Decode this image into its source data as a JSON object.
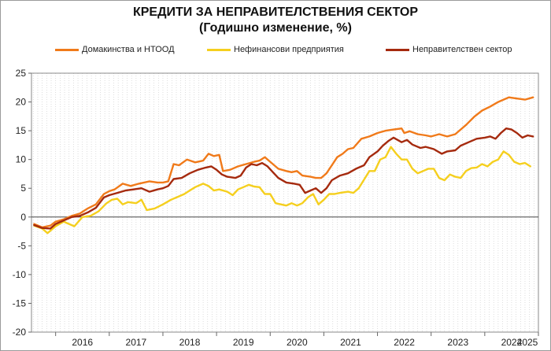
{
  "chart_data": {
    "type": "line",
    "title": "КРЕДИТИ ЗА НЕПРАВИТЕЛСТВЕНИЯ  СЕКТОР",
    "subtitle": "(Годишно  изменение, %)",
    "xlabel": "",
    "ylabel": "",
    "ylim": [
      -20,
      25
    ],
    "yticks": [
      25,
      20,
      15,
      10,
      5,
      0,
      -5,
      -10,
      -15,
      -20
    ],
    "xticks": [
      "2016",
      "2017",
      "2018",
      "2019",
      "2020",
      "2021",
      "2022",
      "2023",
      "2024",
      "2025"
    ],
    "legend_position": "top",
    "grid": "vertical monthly dotted lines",
    "series": [
      {
        "name": "Домакинства и НТООД",
        "color": "#f07a1a",
        "points": [
          [
            2015.6,
            -1.2
          ],
          [
            2015.75,
            -1.8
          ],
          [
            2015.9,
            -1.5
          ],
          [
            2016.0,
            -0.8
          ],
          [
            2016.15,
            -0.4
          ],
          [
            2016.3,
            0.2
          ],
          [
            2016.45,
            0.6
          ],
          [
            2016.6,
            1.5
          ],
          [
            2016.75,
            2.2
          ],
          [
            2016.9,
            4.0
          ],
          [
            2017.0,
            4.5
          ],
          [
            2017.1,
            4.8
          ],
          [
            2017.25,
            5.8
          ],
          [
            2017.4,
            5.4
          ],
          [
            2017.55,
            5.8
          ],
          [
            2017.75,
            6.2
          ],
          [
            2017.9,
            6.0
          ],
          [
            2018.0,
            6.0
          ],
          [
            2018.1,
            6.2
          ],
          [
            2018.2,
            9.2
          ],
          [
            2018.3,
            9.0
          ],
          [
            2018.45,
            10.0
          ],
          [
            2018.6,
            9.5
          ],
          [
            2018.75,
            9.8
          ],
          [
            2018.85,
            11.0
          ],
          [
            2018.95,
            10.6
          ],
          [
            2019.05,
            10.8
          ],
          [
            2019.12,
            8.0
          ],
          [
            2019.25,
            8.2
          ],
          [
            2019.4,
            8.8
          ],
          [
            2019.55,
            9.2
          ],
          [
            2019.7,
            9.6
          ],
          [
            2019.8,
            9.8
          ],
          [
            2019.9,
            10.4
          ],
          [
            2020.0,
            9.6
          ],
          [
            2020.15,
            8.4
          ],
          [
            2020.3,
            8.0
          ],
          [
            2020.4,
            7.8
          ],
          [
            2020.5,
            8.0
          ],
          [
            2020.6,
            7.2
          ],
          [
            2020.75,
            7.0
          ],
          [
            2020.85,
            6.8
          ],
          [
            2020.95,
            6.8
          ],
          [
            2021.05,
            7.6
          ],
          [
            2021.15,
            9.0
          ],
          [
            2021.25,
            10.4
          ],
          [
            2021.35,
            11.0
          ],
          [
            2021.45,
            11.8
          ],
          [
            2021.55,
            12.0
          ],
          [
            2021.7,
            13.6
          ],
          [
            2021.85,
            14.0
          ],
          [
            2022.0,
            14.6
          ],
          [
            2022.15,
            15.0
          ],
          [
            2022.3,
            15.2
          ],
          [
            2022.45,
            15.4
          ],
          [
            2022.5,
            14.6
          ],
          [
            2022.6,
            14.9
          ],
          [
            2022.75,
            14.4
          ],
          [
            2022.9,
            14.2
          ],
          [
            2023.0,
            14.0
          ],
          [
            2023.15,
            14.4
          ],
          [
            2023.3,
            14.0
          ],
          [
            2023.45,
            14.4
          ],
          [
            2023.55,
            15.2
          ],
          [
            2023.65,
            16.0
          ],
          [
            2023.8,
            17.4
          ],
          [
            2023.95,
            18.5
          ],
          [
            2024.1,
            19.2
          ],
          [
            2024.25,
            20.0
          ],
          [
            2024.35,
            20.4
          ],
          [
            2024.45,
            20.8
          ],
          [
            2024.6,
            20.6
          ],
          [
            2024.75,
            20.4
          ],
          [
            2024.9,
            20.8
          ]
        ]
      },
      {
        "name": "Нефинанcови предприятия",
        "color": "#f5cf1e",
        "points": [
          [
            2015.6,
            -1.5
          ],
          [
            2015.75,
            -2.0
          ],
          [
            2015.85,
            -2.8
          ],
          [
            2016.0,
            -1.6
          ],
          [
            2016.15,
            -0.8
          ],
          [
            2016.25,
            -1.2
          ],
          [
            2016.35,
            -1.6
          ],
          [
            2016.5,
            0.0
          ],
          [
            2016.65,
            0.2
          ],
          [
            2016.8,
            1.0
          ],
          [
            2016.95,
            2.4
          ],
          [
            2017.05,
            3.0
          ],
          [
            2017.15,
            3.2
          ],
          [
            2017.25,
            2.2
          ],
          [
            2017.35,
            2.6
          ],
          [
            2017.5,
            2.4
          ],
          [
            2017.6,
            3.0
          ],
          [
            2017.7,
            1.2
          ],
          [
            2017.85,
            1.5
          ],
          [
            2018.0,
            2.2
          ],
          [
            2018.15,
            3.0
          ],
          [
            2018.3,
            3.6
          ],
          [
            2018.4,
            4.0
          ],
          [
            2018.5,
            4.6
          ],
          [
            2018.6,
            5.2
          ],
          [
            2018.75,
            5.8
          ],
          [
            2018.85,
            5.4
          ],
          [
            2018.95,
            4.6
          ],
          [
            2019.05,
            4.8
          ],
          [
            2019.2,
            4.4
          ],
          [
            2019.3,
            3.8
          ],
          [
            2019.4,
            4.8
          ],
          [
            2019.5,
            5.2
          ],
          [
            2019.6,
            5.6
          ],
          [
            2019.7,
            5.3
          ],
          [
            2019.8,
            5.2
          ],
          [
            2019.9,
            4.0
          ],
          [
            2020.0,
            4.0
          ],
          [
            2020.1,
            2.4
          ],
          [
            2020.2,
            2.2
          ],
          [
            2020.3,
            2.0
          ],
          [
            2020.4,
            2.4
          ],
          [
            2020.5,
            2.0
          ],
          [
            2020.6,
            2.4
          ],
          [
            2020.7,
            3.4
          ],
          [
            2020.8,
            4.0
          ],
          [
            2020.9,
            2.2
          ],
          [
            2021.0,
            3.0
          ],
          [
            2021.1,
            4.0
          ],
          [
            2021.2,
            4.0
          ],
          [
            2021.3,
            4.2
          ],
          [
            2021.45,
            4.4
          ],
          [
            2021.55,
            4.2
          ],
          [
            2021.65,
            5.0
          ],
          [
            2021.75,
            6.5
          ],
          [
            2021.85,
            8.0
          ],
          [
            2021.95,
            8.0
          ],
          [
            2022.05,
            10.0
          ],
          [
            2022.15,
            10.4
          ],
          [
            2022.25,
            12.2
          ],
          [
            2022.35,
            11.0
          ],
          [
            2022.45,
            10.0
          ],
          [
            2022.55,
            10.0
          ],
          [
            2022.65,
            8.4
          ],
          [
            2022.75,
            7.6
          ],
          [
            2022.85,
            8.0
          ],
          [
            2022.95,
            8.4
          ],
          [
            2023.05,
            8.4
          ],
          [
            2023.15,
            6.8
          ],
          [
            2023.25,
            6.4
          ],
          [
            2023.35,
            7.4
          ],
          [
            2023.45,
            7.0
          ],
          [
            2023.55,
            6.8
          ],
          [
            2023.65,
            8.0
          ],
          [
            2023.75,
            8.5
          ],
          [
            2023.85,
            8.6
          ],
          [
            2023.95,
            9.2
          ],
          [
            2024.05,
            8.8
          ],
          [
            2024.15,
            9.6
          ],
          [
            2024.25,
            10.0
          ],
          [
            2024.35,
            11.4
          ],
          [
            2024.45,
            10.8
          ],
          [
            2024.55,
            9.6
          ],
          [
            2024.65,
            9.2
          ],
          [
            2024.75,
            9.4
          ],
          [
            2024.85,
            8.8
          ]
        ]
      },
      {
        "name": "Неправителствен сектор",
        "color": "#a52a0e",
        "points": [
          [
            2015.6,
            -1.4
          ],
          [
            2015.75,
            -1.9
          ],
          [
            2015.9,
            -2.0
          ],
          [
            2016.0,
            -1.2
          ],
          [
            2016.15,
            -0.6
          ],
          [
            2016.3,
            0.0
          ],
          [
            2016.45,
            0.2
          ],
          [
            2016.6,
            0.8
          ],
          [
            2016.75,
            1.6
          ],
          [
            2016.9,
            3.4
          ],
          [
            2017.0,
            3.8
          ],
          [
            2017.15,
            4.2
          ],
          [
            2017.3,
            4.6
          ],
          [
            2017.45,
            4.8
          ],
          [
            2017.6,
            5.0
          ],
          [
            2017.75,
            4.4
          ],
          [
            2017.9,
            4.8
          ],
          [
            2018.0,
            5.0
          ],
          [
            2018.1,
            5.4
          ],
          [
            2018.2,
            6.6
          ],
          [
            2018.35,
            6.8
          ],
          [
            2018.5,
            7.6
          ],
          [
            2018.65,
            8.2
          ],
          [
            2018.8,
            8.6
          ],
          [
            2018.9,
            8.8
          ],
          [
            2019.0,
            8.2
          ],
          [
            2019.1,
            7.4
          ],
          [
            2019.2,
            7.0
          ],
          [
            2019.35,
            6.8
          ],
          [
            2019.45,
            7.2
          ],
          [
            2019.55,
            8.6
          ],
          [
            2019.65,
            9.2
          ],
          [
            2019.75,
            9.0
          ],
          [
            2019.85,
            9.4
          ],
          [
            2019.95,
            8.8
          ],
          [
            2020.05,
            7.8
          ],
          [
            2020.15,
            6.8
          ],
          [
            2020.3,
            6.0
          ],
          [
            2020.45,
            5.8
          ],
          [
            2020.55,
            5.6
          ],
          [
            2020.65,
            4.2
          ],
          [
            2020.75,
            4.6
          ],
          [
            2020.85,
            5.0
          ],
          [
            2020.95,
            4.2
          ],
          [
            2021.05,
            5.0
          ],
          [
            2021.15,
            6.4
          ],
          [
            2021.3,
            7.2
          ],
          [
            2021.45,
            7.6
          ],
          [
            2021.6,
            8.4
          ],
          [
            2021.75,
            9.0
          ],
          [
            2021.85,
            10.4
          ],
          [
            2022.0,
            11.4
          ],
          [
            2022.1,
            12.4
          ],
          [
            2022.2,
            13.2
          ],
          [
            2022.3,
            13.8
          ],
          [
            2022.45,
            13.0
          ],
          [
            2022.55,
            13.4
          ],
          [
            2022.65,
            12.6
          ],
          [
            2022.8,
            12.0
          ],
          [
            2022.9,
            12.2
          ],
          [
            2023.05,
            11.8
          ],
          [
            2023.2,
            11.0
          ],
          [
            2023.3,
            11.4
          ],
          [
            2023.45,
            11.6
          ],
          [
            2023.55,
            12.4
          ],
          [
            2023.7,
            13.0
          ],
          [
            2023.85,
            13.6
          ],
          [
            2024.0,
            13.8
          ],
          [
            2024.1,
            14.0
          ],
          [
            2024.2,
            13.6
          ],
          [
            2024.3,
            14.6
          ],
          [
            2024.4,
            15.4
          ],
          [
            2024.5,
            15.2
          ],
          [
            2024.6,
            14.6
          ],
          [
            2024.7,
            13.8
          ],
          [
            2024.8,
            14.2
          ],
          [
            2024.9,
            14.0
          ]
        ]
      }
    ]
  }
}
